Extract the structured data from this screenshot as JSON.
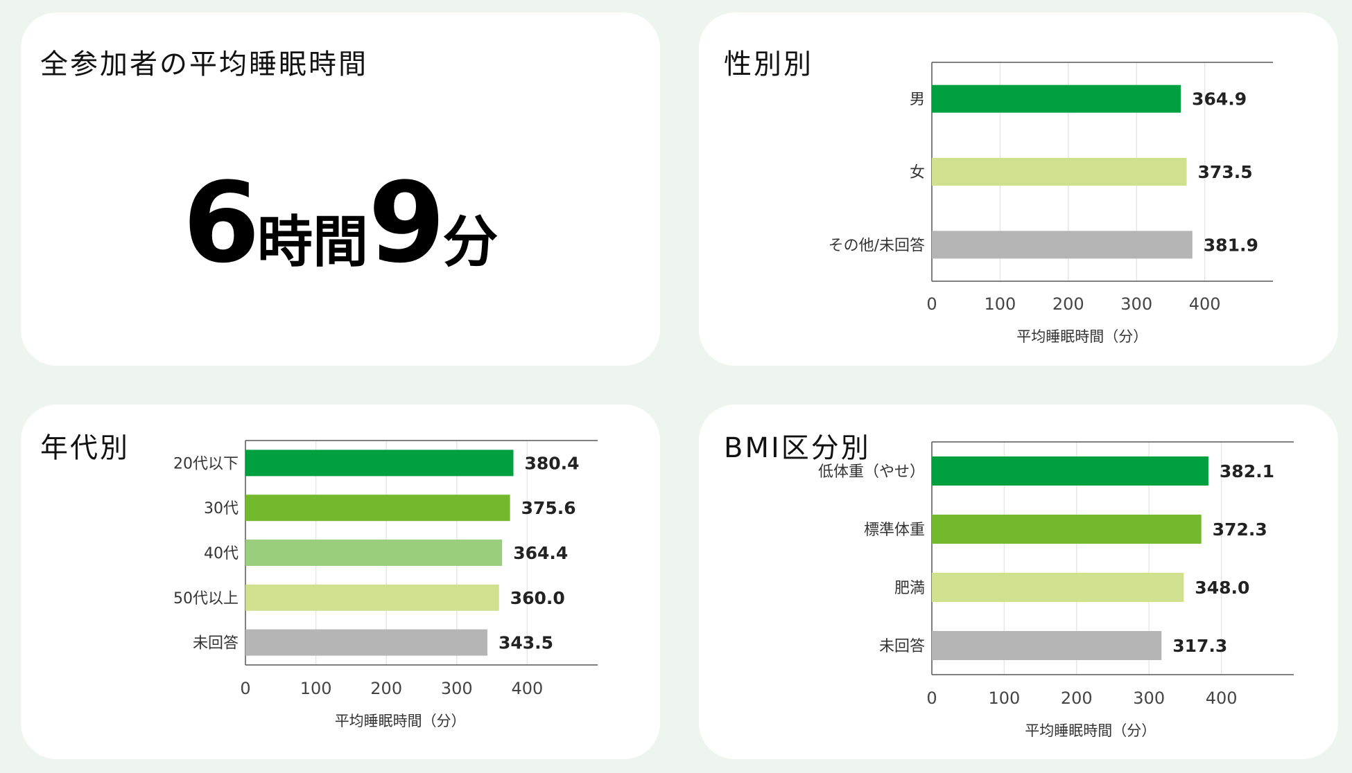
{
  "overall": {
    "title": "全参加者の平均睡眠時間",
    "hours": "6",
    "hours_unit": "時間",
    "minutes": "9",
    "minutes_unit": "分"
  },
  "chart_data": [
    {
      "id": "gender",
      "type": "bar",
      "orientation": "horizontal",
      "title": "性別別",
      "xlabel": "平均睡眠時間（分）",
      "categories": [
        "男",
        "女",
        "その他/未回答"
      ],
      "values": [
        364.9,
        373.5,
        381.9
      ],
      "value_labels": [
        "364.9",
        "373.5",
        "381.9"
      ],
      "colors": [
        "#00a040",
        "#cfe08e",
        "#b5b5b5"
      ],
      "xlim": [
        0,
        500
      ],
      "xticks": [
        "0",
        "100",
        "200",
        "300",
        "400"
      ],
      "grid": true
    },
    {
      "id": "age",
      "type": "bar",
      "orientation": "horizontal",
      "title": "年代別",
      "xlabel": "平均睡眠時間（分）",
      "categories": [
        "20代以下",
        "30代",
        "40代",
        "50代以上",
        "未回答"
      ],
      "values": [
        380.4,
        375.6,
        364.4,
        360.0,
        343.5
      ],
      "value_labels": [
        "380.4",
        "375.6",
        "364.4",
        "360.0",
        "343.5"
      ],
      "colors": [
        "#00a040",
        "#72b92e",
        "#9acd7e",
        "#cfe08e",
        "#b5b5b5"
      ],
      "xlim": [
        0,
        500
      ],
      "xticks": [
        "0",
        "100",
        "200",
        "300",
        "400"
      ],
      "grid": true
    },
    {
      "id": "bmi",
      "type": "bar",
      "orientation": "horizontal",
      "title": "BMI区分別",
      "xlabel": "平均睡眠時間（分）",
      "categories": [
        "低体重（やせ）",
        "標準体重",
        "肥満",
        "未回答"
      ],
      "values": [
        382.1,
        372.3,
        348.0,
        317.3
      ],
      "value_labels": [
        "382.1",
        "372.3",
        "348.0",
        "317.3"
      ],
      "colors": [
        "#00a040",
        "#72b92e",
        "#cfe08e",
        "#b5b5b5"
      ],
      "xlim": [
        0,
        500
      ],
      "xticks": [
        "0",
        "100",
        "200",
        "300",
        "400"
      ],
      "grid": true
    }
  ]
}
